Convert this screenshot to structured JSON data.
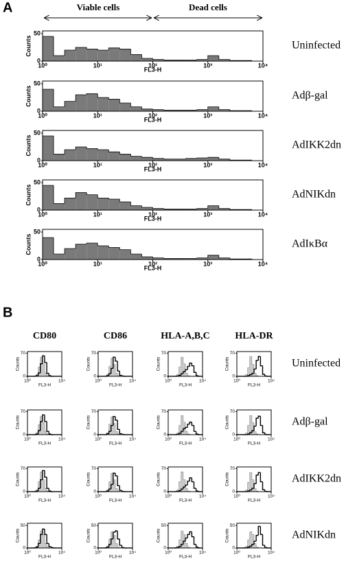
{
  "panel_a": {
    "label": "A",
    "regions": [
      "Viable cells",
      "Dead cells"
    ],
    "ylabel": "Counts",
    "xlabel": "FL3-H",
    "xlim": [
      0,
      4
    ],
    "xticks": [
      {
        "value": 0,
        "label": "10⁰"
      },
      {
        "value": 1,
        "label": "10¹"
      },
      {
        "value": 2,
        "label": "10²"
      },
      {
        "value": 3,
        "label": "10³"
      },
      {
        "value": 4,
        "label": "10⁴"
      }
    ],
    "ylim": [
      0,
      55
    ],
    "yticks": [
      0,
      50
    ],
    "bins": [
      0,
      0.2,
      0.4,
      0.6,
      0.8,
      1,
      1.2,
      1.4,
      1.6,
      1.8,
      2,
      2.2,
      2.4,
      2.6,
      2.8,
      3,
      3.2,
      3.4,
      3.6,
      3.8,
      4
    ],
    "rows": [
      {
        "name": "Uninfected",
        "counts": [
          45,
          10,
          20,
          25,
          22,
          20,
          24,
          22,
          12,
          5,
          3,
          2,
          2,
          2,
          3,
          10,
          3,
          1,
          1,
          0
        ]
      },
      {
        "name": "Adβ-gal",
        "counts": [
          40,
          8,
          18,
          30,
          32,
          25,
          22,
          15,
          8,
          4,
          3,
          2,
          2,
          2,
          3,
          8,
          3,
          1,
          1,
          0
        ]
      },
      {
        "name": "AdIKK2dn",
        "counts": [
          45,
          12,
          20,
          25,
          22,
          20,
          16,
          12,
          8,
          6,
          4,
          3,
          3,
          4,
          5,
          6,
          3,
          1,
          1,
          0
        ]
      },
      {
        "name": "AdNIKdn",
        "counts": [
          45,
          12,
          22,
          32,
          28,
          22,
          20,
          15,
          8,
          5,
          3,
          2,
          2,
          2,
          3,
          8,
          3,
          1,
          1,
          0
        ]
      },
      {
        "name": "AdIκBα",
        "counts": [
          40,
          10,
          20,
          28,
          30,
          25,
          22,
          18,
          10,
          5,
          3,
          2,
          2,
          2,
          3,
          8,
          3,
          1,
          1,
          0
        ]
      }
    ]
  },
  "panel_b": {
    "label": "B",
    "columns": [
      "CD80",
      "CD86",
      "HLA-A,B,C",
      "HLA-DR"
    ],
    "ylabel": "Counts",
    "xlabel": "FL3-H",
    "xlim": [
      0,
      4
    ],
    "xticks": [
      {
        "value": 0,
        "label": "10⁰"
      },
      {
        "value": 4,
        "label": "10⁴"
      }
    ],
    "bins": [
      0,
      0.25,
      0.5,
      0.75,
      1,
      1.25,
      1.5,
      1.75,
      2,
      2.25,
      2.5,
      2.75,
      3,
      3.25,
      3.5,
      3.75,
      4
    ],
    "rows": [
      {
        "name": "Uninfected",
        "ylim": [
          0,
          75
        ],
        "yticks": [
          0,
          70
        ],
        "cells": [
          {
            "control": [
              0,
              0,
              0,
              1,
              5,
              28,
              58,
              38,
              10,
              2,
              0,
              0,
              0,
              0,
              0,
              0
            ],
            "stain": [
              0,
              0,
              0,
              0,
              2,
              10,
              38,
              62,
              42,
              9,
              2,
              0,
              0,
              0,
              0,
              0
            ]
          },
          {
            "control": [
              0,
              0,
              0,
              1,
              6,
              30,
              55,
              36,
              10,
              2,
              0,
              0,
              0,
              0,
              0,
              0
            ],
            "stain": [
              0,
              0,
              0,
              0,
              2,
              8,
              24,
              58,
              46,
              16,
              3,
              1,
              0,
              0,
              0,
              0
            ]
          },
          {
            "control": [
              0,
              0,
              0,
              1,
              5,
              28,
              58,
              38,
              10,
              2,
              0,
              0,
              0,
              0,
              0,
              0
            ],
            "stain": [
              0,
              0,
              0,
              0,
              1,
              3,
              8,
              14,
              20,
              30,
              40,
              32,
              12,
              2,
              0,
              0
            ]
          },
          {
            "control": [
              0,
              0,
              0,
              1,
              5,
              26,
              60,
              36,
              9,
              2,
              0,
              0,
              0,
              0,
              0,
              0
            ],
            "stain": [
              0,
              0,
              0,
              0,
              0,
              2,
              5,
              9,
              22,
              48,
              60,
              32,
              6,
              1,
              0,
              0
            ]
          }
        ]
      },
      {
        "name": "Adβ-gal",
        "ylim": [
          0,
          75
        ],
        "yticks": [
          0,
          70
        ],
        "cells": [
          {
            "control": [
              0,
              0,
              0,
              1,
              6,
              30,
              56,
              36,
              10,
              2,
              0,
              0,
              0,
              0,
              0,
              0
            ],
            "stain": [
              0,
              0,
              0,
              0,
              2,
              12,
              40,
              60,
              40,
              10,
              2,
              0,
              0,
              0,
              0,
              0
            ]
          },
          {
            "control": [
              0,
              0,
              0,
              1,
              6,
              32,
              54,
              34,
              10,
              2,
              0,
              0,
              0,
              0,
              0,
              0
            ],
            "stain": [
              0,
              0,
              0,
              0,
              3,
              10,
              28,
              55,
              44,
              16,
              3,
              1,
              0,
              0,
              0,
              0
            ]
          },
          {
            "control": [
              0,
              0,
              0,
              1,
              5,
              28,
              58,
              38,
              10,
              2,
              0,
              0,
              0,
              0,
              0,
              0
            ],
            "stain": [
              0,
              0,
              0,
              0,
              1,
              4,
              10,
              18,
              22,
              32,
              38,
              28,
              10,
              2,
              0,
              0
            ]
          },
          {
            "control": [
              0,
              0,
              0,
              1,
              5,
              28,
              58,
              36,
              9,
              2,
              0,
              0,
              0,
              0,
              0,
              0
            ],
            "stain": [
              0,
              0,
              0,
              0,
              0,
              2,
              6,
              12,
              26,
              50,
              56,
              28,
              6,
              1,
              0,
              0
            ]
          }
        ]
      },
      {
        "name": "AdIKK2dn",
        "ylim": [
          0,
          75
        ],
        "yticks": [
          0,
          70
        ],
        "cells": [
          {
            "control": [
              0,
              0,
              0,
              1,
              5,
              30,
              60,
              36,
              10,
              2,
              0,
              0,
              0,
              0,
              0,
              0
            ],
            "stain": [
              0,
              0,
              0,
              0,
              2,
              10,
              36,
              64,
              44,
              10,
              2,
              0,
              0,
              0,
              0,
              0
            ]
          },
          {
            "control": [
              0,
              0,
              0,
              1,
              6,
              30,
              56,
              36,
              10,
              2,
              0,
              0,
              0,
              0,
              0,
              0
            ],
            "stain": [
              0,
              0,
              0,
              0,
              2,
              8,
              22,
              56,
              48,
              18,
              4,
              1,
              0,
              0,
              0,
              0
            ]
          },
          {
            "control": [
              0,
              0,
              0,
              1,
              5,
              30,
              60,
              36,
              10,
              2,
              0,
              0,
              0,
              0,
              0,
              0
            ],
            "stain": [
              0,
              0,
              0,
              0,
              1,
              3,
              8,
              14,
              20,
              32,
              42,
              30,
              10,
              2,
              0,
              0
            ]
          },
          {
            "control": [
              0,
              0,
              0,
              1,
              5,
              28,
              58,
              36,
              9,
              2,
              0,
              0,
              0,
              0,
              0,
              0
            ],
            "stain": [
              0,
              0,
              0,
              0,
              0,
              2,
              5,
              10,
              24,
              50,
              58,
              30,
              6,
              1,
              0,
              0
            ]
          }
        ]
      },
      {
        "name": "AdNIKdn",
        "ylim": [
          0,
          55
        ],
        "yticks": [
          0,
          50
        ],
        "cells": [
          {
            "control": [
              0,
              0,
              0,
              1,
              4,
              18,
              38,
              30,
              10,
              2,
              0,
              0,
              0,
              0,
              0,
              0
            ],
            "stain": [
              0,
              0,
              0,
              0,
              2,
              10,
              30,
              42,
              30,
              10,
              3,
              1,
              0,
              0,
              0,
              0
            ]
          },
          {
            "control": [
              0,
              0,
              0,
              1,
              4,
              20,
              36,
              28,
              10,
              2,
              0,
              0,
              0,
              0,
              0,
              0
            ],
            "stain": [
              0,
              0,
              0,
              0,
              2,
              8,
              20,
              35,
              38,
              20,
              6,
              1,
              0,
              0,
              0,
              0
            ]
          },
          {
            "control": [
              0,
              0,
              0,
              1,
              4,
              18,
              38,
              30,
              10,
              2,
              0,
              0,
              0,
              0,
              0,
              0
            ],
            "stain": [
              0,
              0,
              0,
              0,
              1,
              3,
              8,
              15,
              22,
              30,
              36,
              25,
              8,
              2,
              0,
              0
            ]
          },
          {
            "control": [
              0,
              0,
              0,
              1,
              4,
              18,
              36,
              30,
              10,
              2,
              0,
              0,
              0,
              0,
              0,
              0
            ],
            "stain": [
              0,
              0,
              0,
              0,
              0,
              2,
              4,
              8,
              15,
              28,
              48,
              30,
              6,
              1,
              0,
              0
            ]
          }
        ]
      }
    ]
  }
}
